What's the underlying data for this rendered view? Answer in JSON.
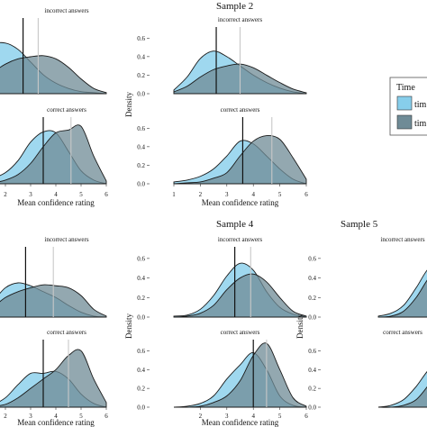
{
  "colors": {
    "t1": "#87ceeb",
    "t2": "#6f8b96",
    "line": "#111111",
    "vline_t2": "#c8c8c8"
  },
  "chart_data": [
    {
      "type": "area",
      "title": "",
      "xlabel": "Mean confidence rating",
      "ylabel": "",
      "xlim": [
        1,
        6
      ],
      "ylim": [
        0,
        0.7
      ],
      "x_ticks": [
        "2",
        "3",
        "4",
        "5",
        "6"
      ],
      "y_ticks": [],
      "panels": [
        {
          "label": "incorrect answers",
          "series": [
            {
              "x": [
                1,
                1.5,
                2,
                2.5,
                3,
                3.5,
                4,
                4.5,
                5,
                5.5,
                6
              ],
              "y": [
                0.3,
                0.46,
                0.48,
                0.42,
                0.3,
                0.18,
                0.1,
                0.05,
                0.02,
                0.01,
                0
              ]
            },
            {
              "x": [
                1,
                1.5,
                2,
                2.5,
                3,
                3.5,
                4,
                4.5,
                5,
                5.5,
                6
              ],
              "y": [
                0.1,
                0.2,
                0.28,
                0.33,
                0.35,
                0.36,
                0.33,
                0.25,
                0.14,
                0.05,
                0.01
              ]
            }
          ],
          "vlines": [
            2.7,
            3.3
          ]
        },
        {
          "label": "correct answers",
          "series": [
            {
              "x": [
                1,
                1.5,
                2,
                2.5,
                3,
                3.5,
                4,
                4.5,
                5,
                5.5,
                6
              ],
              "y": [
                0.02,
                0.06,
                0.12,
                0.25,
                0.45,
                0.56,
                0.55,
                0.35,
                0.14,
                0.04,
                0
              ]
            },
            {
              "x": [
                1,
                1.5,
                2,
                2.5,
                3,
                3.5,
                4,
                4.5,
                5,
                5.5,
                6
              ],
              "y": [
                0,
                0.01,
                0.04,
                0.1,
                0.22,
                0.4,
                0.55,
                0.58,
                0.62,
                0.3,
                0.03
              ]
            }
          ],
          "vlines": [
            3.5,
            4.6
          ]
        }
      ]
    },
    {
      "type": "area",
      "title": "Sample 2",
      "xlabel": "Mean confidence rating",
      "ylabel": "Density",
      "xlim": [
        1,
        6
      ],
      "ylim": [
        0,
        0.7
      ],
      "x_ticks": [
        "1",
        "2",
        "3",
        "4",
        "5",
        "6"
      ],
      "y_ticks": [
        "0.0",
        "0.2",
        "0.4",
        "0.6"
      ],
      "panels": [
        {
          "label": "incorrect answers",
          "series": [
            {
              "x": [
                1,
                1.5,
                2,
                2.5,
                3,
                3.5,
                4,
                4.5,
                5,
                5.5,
                6
              ],
              "y": [
                0.04,
                0.18,
                0.38,
                0.46,
                0.4,
                0.3,
                0.2,
                0.12,
                0.06,
                0.02,
                0
              ]
            },
            {
              "x": [
                1,
                1.5,
                2,
                2.5,
                3,
                3.5,
                4,
                4.5,
                5,
                5.5,
                6
              ],
              "y": [
                0.02,
                0.08,
                0.18,
                0.26,
                0.3,
                0.32,
                0.28,
                0.2,
                0.12,
                0.05,
                0.01
              ]
            }
          ],
          "vlines": [
            2.6,
            3.5
          ]
        },
        {
          "label": "correct answers",
          "series": [
            {
              "x": [
                1,
                1.5,
                2,
                2.5,
                3,
                3.5,
                4,
                4.5,
                5,
                5.5,
                6
              ],
              "y": [
                0.02,
                0.04,
                0.08,
                0.16,
                0.3,
                0.46,
                0.43,
                0.3,
                0.16,
                0.05,
                0
              ]
            },
            {
              "x": [
                1,
                1.5,
                2,
                2.5,
                3,
                3.5,
                4,
                4.5,
                5,
                5.5,
                6
              ],
              "y": [
                0,
                0.01,
                0.02,
                0.06,
                0.12,
                0.3,
                0.46,
                0.52,
                0.48,
                0.28,
                0.05
              ]
            }
          ],
          "vlines": [
            3.6,
            4.7
          ]
        }
      ]
    },
    {
      "type": "area",
      "title": "",
      "xlabel": "Mean confidence rating",
      "ylabel": "",
      "xlim": [
        1,
        6
      ],
      "ylim": [
        0,
        0.7
      ],
      "x_ticks": [
        "2",
        "3",
        "4",
        "5",
        "6"
      ],
      "y_ticks": [],
      "panels": [
        {
          "label": "incorrect answers",
          "series": [
            {
              "x": [
                1,
                1.5,
                2,
                2.5,
                3,
                3.5,
                4,
                4.5,
                5,
                5.5,
                6
              ],
              "y": [
                0.04,
                0.16,
                0.3,
                0.35,
                0.32,
                0.26,
                0.2,
                0.12,
                0.05,
                0.01,
                0
              ]
            },
            {
              "x": [
                1,
                1.5,
                2,
                2.5,
                3,
                3.5,
                4,
                4.5,
                5,
                5.5,
                6
              ],
              "y": [
                0.02,
                0.1,
                0.2,
                0.26,
                0.3,
                0.33,
                0.32,
                0.3,
                0.22,
                0.08,
                0.01
              ]
            }
          ],
          "vlines": [
            2.8,
            3.9
          ]
        },
        {
          "label": "correct answers",
          "series": [
            {
              "x": [
                1,
                1.5,
                2,
                2.5,
                3,
                3.5,
                4,
                4.5,
                5,
                5.5,
                6
              ],
              "y": [
                0.01,
                0.03,
                0.1,
                0.24,
                0.36,
                0.36,
                0.38,
                0.3,
                0.14,
                0.04,
                0
              ]
            },
            {
              "x": [
                1,
                1.5,
                2,
                2.5,
                3,
                3.5,
                4,
                4.5,
                5,
                5.5,
                6
              ],
              "y": [
                0,
                0.01,
                0.03,
                0.1,
                0.2,
                0.3,
                0.4,
                0.55,
                0.6,
                0.3,
                0.05
              ]
            }
          ],
          "vlines": [
            3.5,
            4.5
          ]
        }
      ]
    },
    {
      "type": "area",
      "title": "Sample 4",
      "xlabel": "Mean confidence rating",
      "ylabel": "Density",
      "xlim": [
        1,
        6
      ],
      "ylim": [
        0,
        0.7
      ],
      "x_ticks": [
        "2",
        "3",
        "4",
        "5",
        "6"
      ],
      "y_ticks": [
        "0.0",
        "0.2",
        "0.4",
        "0.6"
      ],
      "panels": [
        {
          "label": "incorrect answers",
          "series": [
            {
              "x": [
                1,
                1.5,
                2,
                2.5,
                3,
                3.5,
                4,
                4.5,
                5,
                5.5,
                6
              ],
              "y": [
                0.01,
                0.02,
                0.08,
                0.22,
                0.42,
                0.55,
                0.48,
                0.26,
                0.1,
                0.03,
                0
              ]
            },
            {
              "x": [
                1,
                1.5,
                2,
                2.5,
                3,
                3.5,
                4,
                4.5,
                5,
                5.5,
                6
              ],
              "y": [
                0,
                0.01,
                0.04,
                0.12,
                0.28,
                0.4,
                0.44,
                0.36,
                0.2,
                0.06,
                0.01
              ]
            }
          ],
          "vlines": [
            3.3,
            3.9
          ]
        },
        {
          "label": "correct answers",
          "series": [
            {
              "x": [
                1,
                1.5,
                2,
                2.5,
                3,
                3.5,
                4,
                4.5,
                5,
                5.5,
                6
              ],
              "y": [
                0,
                0.01,
                0.04,
                0.12,
                0.3,
                0.45,
                0.58,
                0.4,
                0.12,
                0.02,
                0
              ]
            },
            {
              "x": [
                1,
                1.5,
                2,
                2.5,
                3,
                3.5,
                4,
                4.5,
                5,
                5.5,
                6
              ],
              "y": [
                0,
                0,
                0.01,
                0.05,
                0.12,
                0.28,
                0.55,
                0.68,
                0.4,
                0.1,
                0.01
              ]
            }
          ],
          "vlines": [
            4.0,
            4.5
          ]
        }
      ]
    },
    {
      "type": "area",
      "title": "Sample 5",
      "xlabel": "",
      "ylabel": "Density",
      "xlim": [
        1,
        6
      ],
      "ylim": [
        0,
        0.7
      ],
      "x_ticks": [],
      "y_ticks": [
        "0.0",
        "0.2",
        "0.4",
        "0.6"
      ],
      "panels": [
        {
          "label": "incorrect answers",
          "series": [
            {
              "x": [
                1,
                1.5,
                2,
                2.5,
                3,
                3.5,
                4,
                4.5,
                5,
                5.5,
                6
              ],
              "y": [
                0.01,
                0.04,
                0.12,
                0.3,
                0.5,
                0.55,
                0.4,
                0.2,
                0.08,
                0.02,
                0
              ]
            },
            {
              "x": [
                1,
                1.5,
                2,
                2.5,
                3,
                3.5,
                4,
                4.5,
                5,
                5.5,
                6
              ],
              "y": [
                0,
                0.01,
                0.06,
                0.2,
                0.4,
                0.52,
                0.48,
                0.3,
                0.12,
                0.03,
                0
              ]
            }
          ],
          "vlines": []
        },
        {
          "label": "correct answers",
          "series": [
            {
              "x": [
                1,
                1.5,
                2,
                2.5,
                3,
                3.5,
                4,
                4.5,
                5,
                5.5,
                6
              ],
              "y": [
                0,
                0.02,
                0.08,
                0.22,
                0.4,
                0.5,
                0.46,
                0.28,
                0.1,
                0.02,
                0
              ]
            },
            {
              "x": [
                1,
                1.5,
                2,
                2.5,
                3,
                3.5,
                4,
                4.5,
                5,
                5.5,
                6
              ],
              "y": [
                0,
                0,
                0.02,
                0.08,
                0.24,
                0.44,
                0.56,
                0.48,
                0.22,
                0.05,
                0
              ]
            }
          ],
          "vlines": []
        }
      ]
    }
  ],
  "legend": {
    "title": "Time",
    "items": [
      {
        "label": "tim"
      },
      {
        "label": "tim"
      }
    ]
  }
}
